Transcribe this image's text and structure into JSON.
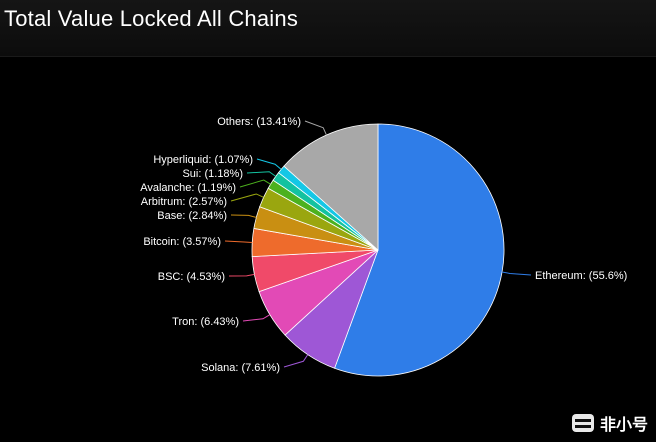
{
  "header": {
    "title": "Total Value Locked All Chains"
  },
  "watermark": {
    "text": "非小号",
    "icon": "brand-logo-icon"
  },
  "chart_data": {
    "type": "pie",
    "title": "Total Value Locked All Chains",
    "start_angle_deg": 0,
    "direction": "clockwise",
    "slices": [
      {
        "label": "Ethereum: (55.6%)",
        "value": 55.6,
        "color": "#2f7de8"
      },
      {
        "label": "Solana: (7.61%)",
        "value": 7.61,
        "color": "#9e57d6"
      },
      {
        "label": "Tron: (6.43%)",
        "value": 6.43,
        "color": "#e24ab6"
      },
      {
        "label": "BSC: (4.53%)",
        "value": 4.53,
        "color": "#f04a69"
      },
      {
        "label": "Bitcoin: (3.57%)",
        "value": 3.57,
        "color": "#ee6b2c"
      },
      {
        "label": "Base: (2.84%)",
        "value": 2.84,
        "color": "#c98f12"
      },
      {
        "label": "Arbitrum: (2.57%)",
        "value": 2.57,
        "color": "#9aa60f"
      },
      {
        "label": "Avalanche: (1.19%)",
        "value": 1.19,
        "color": "#4cb11e"
      },
      {
        "label": "Sui: (1.18%)",
        "value": 1.18,
        "color": "#13c2a0"
      },
      {
        "label": "Hyperliquid: (1.07%)",
        "value": 1.07,
        "color": "#14c7e6"
      },
      {
        "label": "Others: (13.41%)",
        "value": 13.41,
        "color": "#a8a8a8"
      }
    ]
  }
}
